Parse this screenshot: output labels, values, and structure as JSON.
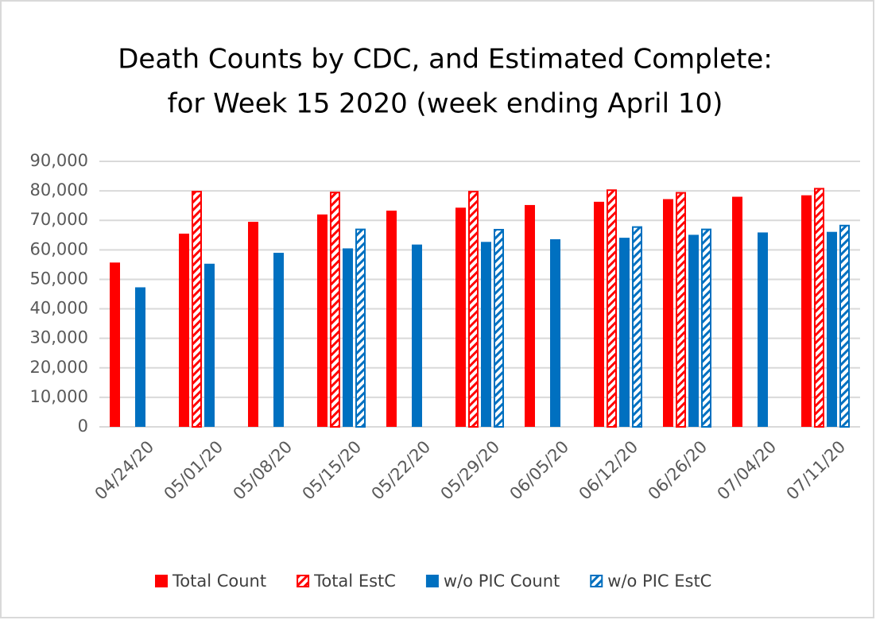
{
  "chart_data": {
    "type": "bar",
    "title": [
      "Death Counts by CDC, and Estimated Complete:",
      "for Week 15 2020 (week ending April 10)"
    ],
    "categories": [
      "04/24/20",
      "05/01/20",
      "05/08/20",
      "05/15/20",
      "05/22/20",
      "05/29/20",
      "06/05/20",
      "06/12/20",
      "06/26/20",
      "07/04/20",
      "07/11/20"
    ],
    "series": [
      {
        "name": "Total Count",
        "color": "#ff0000",
        "hatched": false,
        "values": [
          55700,
          65500,
          69500,
          72000,
          73300,
          74300,
          75200,
          76300,
          77200,
          78000,
          78500
        ]
      },
      {
        "name": "Total EstC",
        "color": "#ff0000",
        "hatched": true,
        "values": [
          null,
          80000,
          null,
          79700,
          null,
          80000,
          null,
          80500,
          79600,
          null,
          81000
        ]
      },
      {
        "name": "w/o PIC Count",
        "color": "#0070c0",
        "hatched": false,
        "values": [
          47300,
          55300,
          59000,
          60500,
          61800,
          62700,
          63600,
          64100,
          65100,
          65900,
          66100
        ]
      },
      {
        "name": "w/o PIC EstC",
        "color": "#0070c0",
        "hatched": true,
        "values": [
          null,
          null,
          null,
          67200,
          null,
          67100,
          null,
          68000,
          67200,
          null,
          68500
        ]
      }
    ],
    "ylim": [
      0,
      90000
    ],
    "yticks": [
      0,
      {
        "value": 10000,
        "label": "10,000"
      },
      {
        "value": 20000,
        "label": "20,000"
      },
      {
        "value": 30000,
        "label": "30,000"
      },
      {
        "value": 40000,
        "label": "40,000"
      },
      {
        "value": 50000,
        "label": "50,000"
      },
      {
        "value": 60000,
        "label": "60,000"
      },
      {
        "value": 70000,
        "label": "70,000"
      },
      {
        "value": 80000,
        "label": "80,000"
      },
      {
        "value": 90000,
        "label": "90,000"
      }
    ],
    "grid": true,
    "legend": "bottom"
  }
}
